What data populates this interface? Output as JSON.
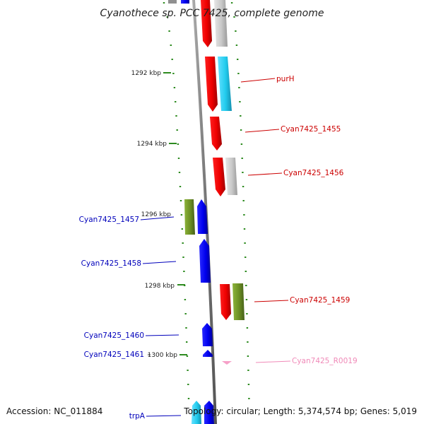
{
  "title": "Cyanothece sp. PCC 7425, complete genome",
  "accession": "Accession: NC_011884",
  "topology": "Topology: circular; Length: 5,374,574 bp; Genes: 5,019",
  "positions": [
    "1292 kbp",
    "1294 kbp",
    "1296 kbp",
    "1298 kbp",
    "1300 kbp"
  ],
  "genes_right": [
    {
      "name": "purH",
      "color": "#cc0000"
    },
    {
      "name": "Cyan7425_1455",
      "color": "#cc0000"
    },
    {
      "name": "Cyan7425_1456",
      "color": "#cc0000"
    },
    {
      "name": "Cyan7425_1459",
      "color": "#cc0000"
    },
    {
      "name": "Cyan7425_R0019",
      "color": "#f08ab8"
    }
  ],
  "genes_left": [
    {
      "name": "Cyan7425_1457",
      "color": "#0000bb"
    },
    {
      "name": "Cyan7425_1458",
      "color": "#0000bb"
    },
    {
      "name": "Cyan7425_1460",
      "color": "#0000bb"
    },
    {
      "name": "Cyan7425_1461",
      "color": "#0000bb"
    },
    {
      "name": "trpA",
      "color": "#0000bb"
    }
  ],
  "colors": {
    "forward_gene": "#ee0000",
    "reverse_gene": "#0000ee",
    "cog_grey": "#c8c8c8",
    "cog_cyan": "#22ccee",
    "cog_olive": "#6b8e23",
    "rna_pink": "#f6a0c8",
    "backbone": "#808080",
    "ticks": "#2e8b20"
  }
}
